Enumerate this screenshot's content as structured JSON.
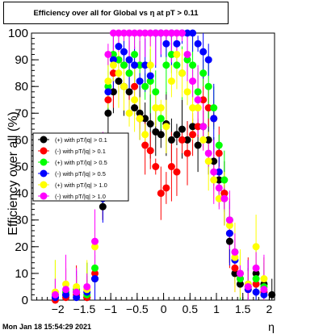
{
  "footer": {
    "timestamp": "Mon Jan 18 15:54:29 2021"
  },
  "chart_data": {
    "type": "scatter",
    "title": "Efficiency over all for Global vs    η at pT > 0.11",
    "xlabel": "η",
    "ylabel": "Efficiency over all (%)",
    "xlim": [
      -2.5,
      2.1
    ],
    "ylim": [
      0,
      100
    ],
    "grid": false,
    "legend_position": "left-middle",
    "xticks": [
      -2,
      -1.5,
      -1,
      -0.5,
      0,
      0.5,
      1,
      1.5,
      2
    ],
    "xtick_labels": [
      "−2",
      "−1.5",
      "−1",
      "−0.5",
      "0",
      "0.5",
      "1",
      "1.5",
      "2"
    ],
    "yticks": [
      0,
      10,
      20,
      30,
      40,
      50,
      60,
      70,
      80,
      90,
      100
    ],
    "series": [
      {
        "name": "(+) with pT/|q| > 0.1",
        "color": "#000000",
        "x": [
          -2.05,
          -1.85,
          -1.65,
          -1.45,
          -1.3,
          -1.15,
          -1.05,
          -0.95,
          -0.85,
          -0.75,
          -0.65,
          -0.55,
          -0.45,
          -0.35,
          -0.25,
          -0.15,
          -0.05,
          0.05,
          0.15,
          0.25,
          0.35,
          0.45,
          0.55,
          0.65,
          0.75,
          0.85,
          0.95,
          1.05,
          1.15,
          1.25,
          1.35,
          1.45,
          1.6,
          1.75,
          1.9,
          2.05
        ],
        "y": [
          1,
          2,
          3,
          1,
          8,
          35,
          70,
          78,
          82,
          80,
          78,
          72,
          70,
          68,
          66,
          63,
          62,
          66,
          60,
          62,
          64,
          60,
          65,
          58,
          65,
          60,
          52,
          45,
          40,
          22,
          10,
          6,
          5,
          10,
          6,
          2
        ]
      },
      {
        "name": "(-) with pT/|q| > 0.1",
        "color": "#ff0000",
        "x": [
          -2.05,
          -1.85,
          -1.65,
          -1.45,
          -1.3,
          -1.15,
          -1.05,
          -0.95,
          -0.85,
          -0.75,
          -0.65,
          -0.55,
          -0.45,
          -0.35,
          -0.25,
          -0.15,
          -0.05,
          0.05,
          0.15,
          0.25,
          0.35,
          0.45,
          0.55,
          0.65,
          0.75,
          0.85,
          0.95,
          1.05,
          1.15,
          1.25,
          1.35,
          1.45,
          1.6,
          1.75,
          1.9
        ],
        "y": [
          0,
          1,
          2,
          1,
          10,
          40,
          75,
          85,
          90,
          88,
          85,
          80,
          68,
          58,
          56,
          50,
          40,
          42,
          50,
          48,
          60,
          55,
          62,
          65,
          75,
          72,
          68,
          55,
          40,
          25,
          12,
          8,
          4,
          6,
          3
        ]
      },
      {
        "name": "(+) with pT/|q| > 0.5",
        "color": "#00ff00",
        "x": [
          -2.05,
          -1.85,
          -1.65,
          -1.45,
          -1.3,
          -1.15,
          -1.05,
          -0.95,
          -0.85,
          -0.75,
          -0.65,
          -0.55,
          -0.45,
          -0.35,
          -0.25,
          -0.15,
          -0.05,
          0.05,
          0.15,
          0.25,
          0.35,
          0.45,
          0.55,
          0.65,
          0.75,
          0.85,
          0.95,
          1.05,
          1.15,
          1.25,
          1.35,
          1.45,
          1.6,
          1.75,
          1.9
        ],
        "y": [
          2,
          3,
          4,
          2,
          12,
          40,
          80,
          92,
          90,
          88,
          85,
          92,
          88,
          80,
          82,
          78,
          68,
          88,
          92,
          88,
          85,
          90,
          88,
          78,
          85,
          80,
          72,
          58,
          45,
          30,
          18,
          8,
          6,
          8,
          5
        ]
      },
      {
        "name": "(-) with pT/|q| > 0.5",
        "color": "#0000ff",
        "x": [
          -2.05,
          -1.85,
          -1.65,
          -1.45,
          -1.3,
          -1.15,
          -1.05,
          -0.95,
          -0.85,
          -0.75,
          -0.65,
          -0.55,
          -0.45,
          -0.35,
          -0.25,
          -0.15,
          -0.05,
          0.05,
          0.15,
          0.25,
          0.35,
          0.45,
          0.55,
          0.65,
          0.75,
          0.85,
          0.95,
          1.05,
          1.15,
          1.25,
          1.35,
          1.45,
          1.6,
          1.75,
          1.9
        ],
        "y": [
          1,
          2,
          1,
          3,
          8,
          38,
          78,
          90,
          95,
          93,
          90,
          88,
          82,
          88,
          84,
          100,
          100,
          96,
          100,
          96,
          100,
          100,
          100,
          96,
          93,
          90,
          68,
          48,
          38,
          25,
          15,
          10,
          4,
          3,
          2
        ]
      },
      {
        "name": "(+) with pT/|q| > 1.0",
        "color": "#ffff00",
        "x": [
          -2.05,
          -1.85,
          -1.65,
          -1.45,
          -1.3,
          -1.15,
          -1.05,
          -0.95,
          -0.85,
          -0.75,
          -0.65,
          -0.55,
          -0.45,
          -0.35,
          -0.25,
          -0.15,
          -0.05,
          0.05,
          0.15,
          0.25,
          0.35,
          0.45,
          0.55,
          0.65,
          0.75,
          0.85,
          0.95,
          1.05,
          1.15,
          1.25,
          1.35,
          1.45,
          1.6,
          1.75,
          1.9
        ],
        "y": [
          3,
          6,
          5,
          4,
          20,
          45,
          82,
          88,
          85,
          80,
          70,
          75,
          68,
          62,
          88,
          72,
          72,
          65,
          82,
          92,
          85,
          78,
          72,
          72,
          60,
          52,
          45,
          38,
          38,
          28,
          16,
          10,
          6,
          20,
          8
        ]
      },
      {
        "name": "(-) with pT/|q| > 1.0",
        "color": "#ff00ff",
        "x": [
          -2.05,
          -1.85,
          -1.65,
          -1.45,
          -1.3,
          -1.15,
          -1.05,
          -0.95,
          -0.85,
          -0.75,
          -0.65,
          -0.55,
          -0.45,
          -0.35,
          -0.25,
          -0.15,
          -0.05,
          0.05,
          0.15,
          0.25,
          0.35,
          0.45,
          0.55,
          0.65,
          0.75,
          0.85,
          0.95,
          1.05,
          1.15,
          1.25,
          1.35,
          1.45,
          1.6,
          1.75,
          1.9
        ],
        "y": [
          2,
          4,
          3,
          5,
          22,
          55,
          92,
          100,
          100,
          100,
          100,
          100,
          100,
          100,
          100,
          100,
          100,
          100,
          100,
          100,
          100,
          92,
          82,
          75,
          65,
          55,
          48,
          42,
          38,
          30,
          18,
          10,
          5,
          12,
          4
        ]
      }
    ]
  }
}
